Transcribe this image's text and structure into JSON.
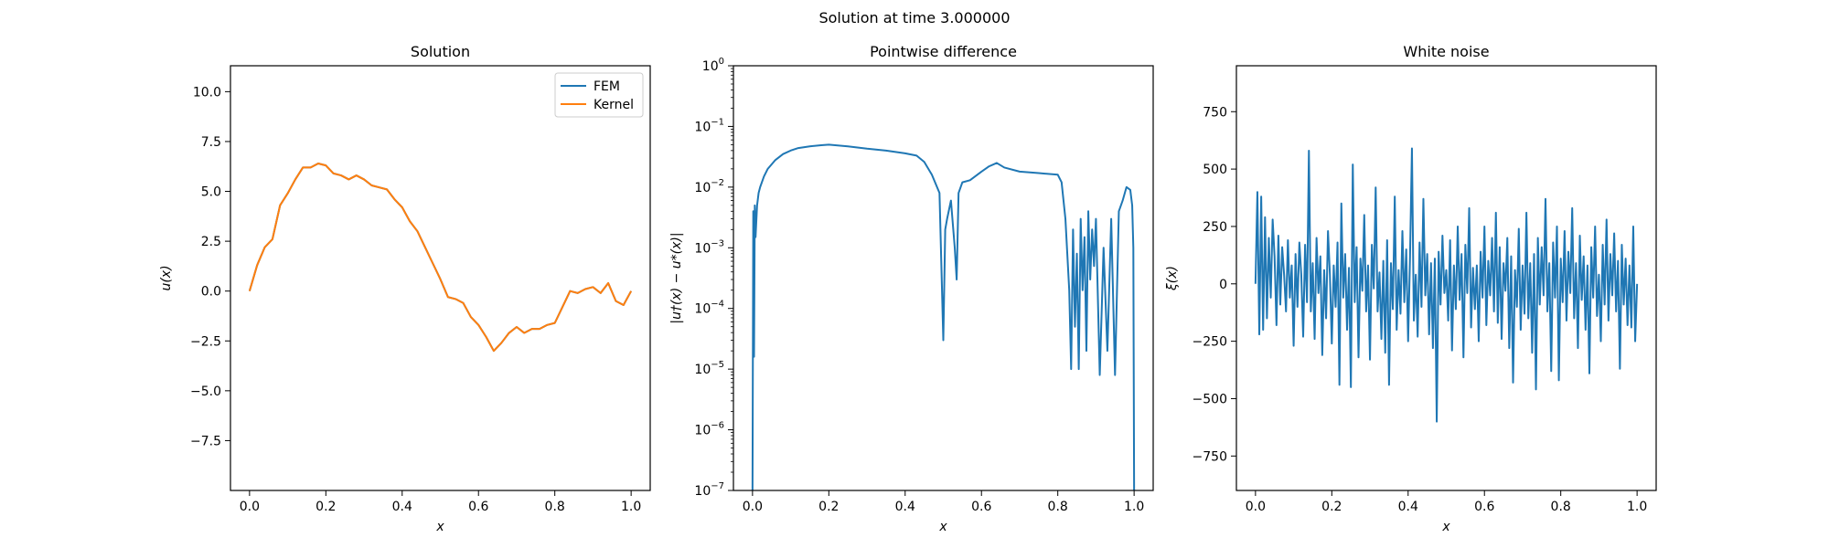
{
  "figure": {
    "suptitle": "Solution at time 3.000000"
  },
  "chart_data": [
    {
      "type": "line",
      "title": "Solution",
      "xlabel": "x",
      "ylabel": "u(x)",
      "xlim": [
        -0.05,
        1.05
      ],
      "ylim": [
        -10,
        11.3
      ],
      "xticks": [
        0.0,
        0.2,
        0.4,
        0.6,
        0.8,
        1.0
      ],
      "xtick_labels": [
        "0.0",
        "0.2",
        "0.4",
        "0.6",
        "0.8",
        "1.0"
      ],
      "yticks": [
        -7.5,
        -5.0,
        -2.5,
        0.0,
        2.5,
        5.0,
        7.5,
        10.0
      ],
      "ytick_labels": [
        "−7.5",
        "−5.0",
        "−2.5",
        "0.0",
        "2.5",
        "5.0",
        "7.5",
        "10.0"
      ],
      "legend": {
        "placement": "top-right",
        "entries": [
          "FEM",
          "Kernel"
        ]
      },
      "series": [
        {
          "name": "FEM",
          "color": "#1f77b4",
          "x": [
            0,
            0.02,
            0.04,
            0.06,
            0.08,
            0.1,
            0.12,
            0.14,
            0.16,
            0.18,
            0.2,
            0.22,
            0.24,
            0.26,
            0.28,
            0.3,
            0.32,
            0.34,
            0.36,
            0.38,
            0.4,
            0.42,
            0.44,
            0.46,
            0.48,
            0.5,
            0.52,
            0.54,
            0.56,
            0.58,
            0.6,
            0.62,
            0.64,
            0.66,
            0.68,
            0.7,
            0.72,
            0.74,
            0.76,
            0.78,
            0.8,
            0.82,
            0.84,
            0.86,
            0.88,
            0.9,
            0.92,
            0.94,
            0.96,
            0.98,
            1.0
          ],
          "y": [
            0.0,
            1.3,
            2.2,
            2.6,
            4.3,
            4.9,
            5.6,
            6.2,
            6.2,
            6.4,
            6.3,
            5.9,
            5.8,
            5.6,
            5.8,
            5.6,
            5.3,
            5.2,
            5.1,
            4.6,
            4.2,
            3.5,
            3.0,
            2.2,
            1.4,
            0.6,
            -0.3,
            -0.4,
            -0.6,
            -1.3,
            -1.7,
            -2.3,
            -3.0,
            -2.6,
            -2.1,
            -1.8,
            -2.1,
            -1.9,
            -1.9,
            -1.7,
            -1.6,
            -0.8,
            0.0,
            -0.1,
            0.1,
            0.2,
            -0.1,
            0.4,
            -0.5,
            -0.7,
            0.0
          ]
        },
        {
          "name": "Kernel",
          "color": "#ff7f0e",
          "x": [
            0,
            0.02,
            0.04,
            0.06,
            0.08,
            0.1,
            0.12,
            0.14,
            0.16,
            0.18,
            0.2,
            0.22,
            0.24,
            0.26,
            0.28,
            0.3,
            0.32,
            0.34,
            0.36,
            0.38,
            0.4,
            0.42,
            0.44,
            0.46,
            0.48,
            0.5,
            0.52,
            0.54,
            0.56,
            0.58,
            0.6,
            0.62,
            0.64,
            0.66,
            0.68,
            0.7,
            0.72,
            0.74,
            0.76,
            0.78,
            0.8,
            0.82,
            0.84,
            0.86,
            0.88,
            0.9,
            0.92,
            0.94,
            0.96,
            0.98,
            1.0
          ],
          "y": [
            0.0,
            1.3,
            2.2,
            2.6,
            4.3,
            4.9,
            5.6,
            6.2,
            6.2,
            6.4,
            6.3,
            5.9,
            5.8,
            5.6,
            5.8,
            5.6,
            5.3,
            5.2,
            5.1,
            4.6,
            4.2,
            3.5,
            3.0,
            2.2,
            1.4,
            0.6,
            -0.3,
            -0.4,
            -0.6,
            -1.3,
            -1.7,
            -2.3,
            -3.0,
            -2.6,
            -2.1,
            -1.8,
            -2.1,
            -1.9,
            -1.9,
            -1.7,
            -1.6,
            -0.8,
            0.0,
            -0.1,
            0.1,
            0.2,
            -0.1,
            0.4,
            -0.5,
            -0.7,
            0.0
          ]
        }
      ]
    },
    {
      "type": "line",
      "title": "Pointwise difference",
      "xlabel": "x",
      "ylabel": "|u†(x) − u*(x)|",
      "yscale": "log",
      "xlim": [
        -0.05,
        1.05
      ],
      "ylim": [
        1e-07,
        1
      ],
      "xticks": [
        0.0,
        0.2,
        0.4,
        0.6,
        0.8,
        1.0
      ],
      "xtick_labels": [
        "0.0",
        "0.2",
        "0.4",
        "0.6",
        "0.8",
        "1.0"
      ],
      "yticks": [
        1e-07,
        1e-06,
        1e-05,
        0.0001,
        0.001,
        0.01,
        0.1,
        1
      ],
      "ytick_labels": [
        [
          "10",
          "−7"
        ],
        [
          "10",
          "−6"
        ],
        [
          "10",
          "−5"
        ],
        [
          "10",
          "−4"
        ],
        [
          "10",
          "−3"
        ],
        [
          "10",
          "−2"
        ],
        [
          "10",
          "−1"
        ],
        [
          "10",
          "0"
        ]
      ],
      "series": [
        {
          "color": "#1f77b4",
          "x": [
            0.0,
            0.002,
            0.004,
            0.006,
            0.008,
            0.012,
            0.016,
            0.02,
            0.03,
            0.04,
            0.06,
            0.08,
            0.1,
            0.12,
            0.15,
            0.18,
            0.2,
            0.25,
            0.3,
            0.35,
            0.4,
            0.43,
            0.45,
            0.47,
            0.49,
            0.5,
            0.505,
            0.51,
            0.52,
            0.53,
            0.535,
            0.54,
            0.55,
            0.57,
            0.6,
            0.62,
            0.64,
            0.66,
            0.7,
            0.75,
            0.8,
            0.81,
            0.82,
            0.83,
            0.835,
            0.84,
            0.845,
            0.85,
            0.855,
            0.86,
            0.865,
            0.87,
            0.875,
            0.88,
            0.885,
            0.89,
            0.895,
            0.9,
            0.91,
            0.92,
            0.93,
            0.94,
            0.95,
            0.96,
            0.97,
            0.98,
            0.99,
            0.995,
            0.998,
            1.0
          ],
          "y": [
            1e-07,
            0.004,
            1.6e-05,
            0.005,
            0.0015,
            0.005,
            0.008,
            0.01,
            0.015,
            0.02,
            0.028,
            0.035,
            0.04,
            0.044,
            0.047,
            0.049,
            0.05,
            0.047,
            0.043,
            0.04,
            0.036,
            0.033,
            0.026,
            0.016,
            0.008,
            3e-05,
            0.002,
            0.003,
            0.006,
            0.001,
            0.0003,
            0.008,
            0.012,
            0.013,
            0.018,
            0.022,
            0.025,
            0.021,
            0.018,
            0.017,
            0.016,
            0.012,
            0.003,
            0.0002,
            1e-05,
            0.002,
            5e-05,
            0.0008,
            1e-05,
            0.003,
            0.0002,
            0.0015,
            2e-05,
            0.004,
            0.0003,
            0.002,
            0.0005,
            0.003,
            8e-06,
            0.001,
            2e-05,
            0.003,
            8e-06,
            0.004,
            0.006,
            0.01,
            0.009,
            0.005,
            0.001,
            1e-07
          ]
        }
      ]
    },
    {
      "type": "line",
      "title": "White noise",
      "xlabel": "x",
      "ylabel": "ξ(x)",
      "xlim": [
        -0.05,
        1.05
      ],
      "ylim": [
        -900,
        950
      ],
      "xticks": [
        0.0,
        0.2,
        0.4,
        0.6,
        0.8,
        1.0
      ],
      "xtick_labels": [
        "0.0",
        "0.2",
        "0.4",
        "0.6",
        "0.8",
        "1.0"
      ],
      "yticks": [
        -750,
        -500,
        -250,
        0,
        250,
        500,
        750
      ],
      "ytick_labels": [
        "−750",
        "−500",
        "−250",
        "0",
        "250",
        "500",
        "750"
      ],
      "series": [
        {
          "color": "#1f77b4",
          "x": [
            0.0,
            0.005,
            0.01,
            0.015,
            0.02,
            0.025,
            0.03,
            0.035,
            0.04,
            0.045,
            0.05,
            0.055,
            0.06,
            0.065,
            0.07,
            0.075,
            0.08,
            0.085,
            0.09,
            0.095,
            0.1,
            0.105,
            0.11,
            0.115,
            0.12,
            0.125,
            0.13,
            0.135,
            0.14,
            0.145,
            0.15,
            0.155,
            0.16,
            0.165,
            0.17,
            0.175,
            0.18,
            0.185,
            0.19,
            0.195,
            0.2,
            0.205,
            0.21,
            0.215,
            0.22,
            0.225,
            0.23,
            0.235,
            0.24,
            0.245,
            0.25,
            0.255,
            0.26,
            0.265,
            0.27,
            0.275,
            0.28,
            0.285,
            0.29,
            0.295,
            0.3,
            0.305,
            0.31,
            0.315,
            0.32,
            0.325,
            0.33,
            0.335,
            0.34,
            0.345,
            0.35,
            0.355,
            0.36,
            0.365,
            0.37,
            0.375,
            0.38,
            0.385,
            0.39,
            0.395,
            0.4,
            0.405,
            0.41,
            0.415,
            0.42,
            0.425,
            0.43,
            0.435,
            0.44,
            0.445,
            0.45,
            0.455,
            0.46,
            0.465,
            0.47,
            0.475,
            0.48,
            0.485,
            0.49,
            0.495,
            0.5,
            0.505,
            0.51,
            0.515,
            0.52,
            0.525,
            0.53,
            0.535,
            0.54,
            0.545,
            0.55,
            0.555,
            0.56,
            0.565,
            0.57,
            0.575,
            0.58,
            0.585,
            0.59,
            0.595,
            0.6,
            0.605,
            0.61,
            0.615,
            0.62,
            0.625,
            0.63,
            0.635,
            0.64,
            0.645,
            0.65,
            0.655,
            0.66,
            0.665,
            0.67,
            0.675,
            0.68,
            0.685,
            0.69,
            0.695,
            0.7,
            0.705,
            0.71,
            0.715,
            0.72,
            0.725,
            0.73,
            0.735,
            0.74,
            0.745,
            0.75,
            0.755,
            0.76,
            0.765,
            0.77,
            0.775,
            0.78,
            0.785,
            0.79,
            0.795,
            0.8,
            0.805,
            0.81,
            0.815,
            0.82,
            0.825,
            0.83,
            0.835,
            0.84,
            0.845,
            0.85,
            0.855,
            0.86,
            0.865,
            0.87,
            0.875,
            0.88,
            0.885,
            0.89,
            0.895,
            0.9,
            0.905,
            0.91,
            0.915,
            0.92,
            0.925,
            0.93,
            0.935,
            0.94,
            0.945,
            0.95,
            0.955,
            0.96,
            0.965,
            0.97,
            0.975,
            0.98,
            0.985,
            0.99,
            0.995,
            1.0
          ],
          "y": [
            0,
            400,
            -220,
            380,
            -200,
            290,
            -150,
            200,
            -60,
            280,
            120,
            -180,
            210,
            -90,
            160,
            40,
            -120,
            190,
            -60,
            80,
            -270,
            130,
            -100,
            180,
            40,
            -230,
            170,
            -80,
            580,
            -120,
            90,
            -240,
            200,
            -40,
            120,
            -310,
            60,
            -150,
            230,
            40,
            -260,
            80,
            -100,
            180,
            -440,
            350,
            -60,
            130,
            -200,
            70,
            -450,
            520,
            -80,
            160,
            -320,
            110,
            -30,
            300,
            -120,
            80,
            -330,
            170,
            -20,
            420,
            -120,
            50,
            -240,
            100,
            -300,
            190,
            -440,
            90,
            -110,
            380,
            -200,
            60,
            -130,
            230,
            -80,
            150,
            -250,
            120,
            590,
            -160,
            40,
            -230,
            180,
            -100,
            370,
            -50,
            130,
            -220,
            90,
            -280,
            110,
            -600,
            140,
            -90,
            210,
            -40,
            60,
            -160,
            190,
            -290,
            80,
            -110,
            250,
            -70,
            130,
            -320,
            170,
            -40,
            330,
            -190,
            70,
            -110,
            80,
            -250,
            140,
            -60,
            250,
            -180,
            100,
            -50,
            200,
            -120,
            310,
            -170,
            160,
            -240,
            90,
            -30,
            200,
            -280,
            120,
            -430,
            60,
            -100,
            240,
            -200,
            80,
            -130,
            310,
            -150,
            90,
            -300,
            130,
            -460,
            200,
            -90,
            160,
            -50,
            370,
            -120,
            90,
            -380,
            180,
            -60,
            250,
            -420,
            110,
            -80,
            230,
            -160,
            140,
            -40,
            330,
            -150,
            90,
            -280,
            210,
            -70,
            120,
            -200,
            80,
            -390,
            160,
            -60,
            250,
            -140,
            40,
            -250,
            170,
            -90,
            280,
            -160,
            130,
            -50,
            220,
            -120,
            100,
            -370,
            170,
            -90,
            110,
            -180,
            80,
            -190,
            250,
            -250,
            0
          ]
        }
      ]
    }
  ]
}
